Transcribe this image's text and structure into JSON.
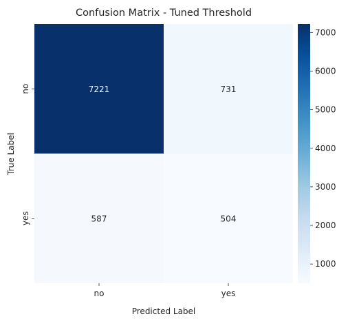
{
  "chart_data": {
    "type": "heatmap",
    "title": "Confusion Matrix - Tuned Threshold",
    "xlabel": "Predicted Label",
    "ylabel": "True Label",
    "x_categories": [
      "no",
      "yes"
    ],
    "y_categories": [
      "no",
      "yes"
    ],
    "values": [
      [
        7221,
        731
      ],
      [
        587,
        504
      ]
    ],
    "colorscale": "Blues",
    "colorbar": {
      "min": 504,
      "max": 7221,
      "ticks": [
        "1000",
        "2000",
        "3000",
        "4000",
        "5000",
        "6000",
        "7000"
      ]
    }
  }
}
